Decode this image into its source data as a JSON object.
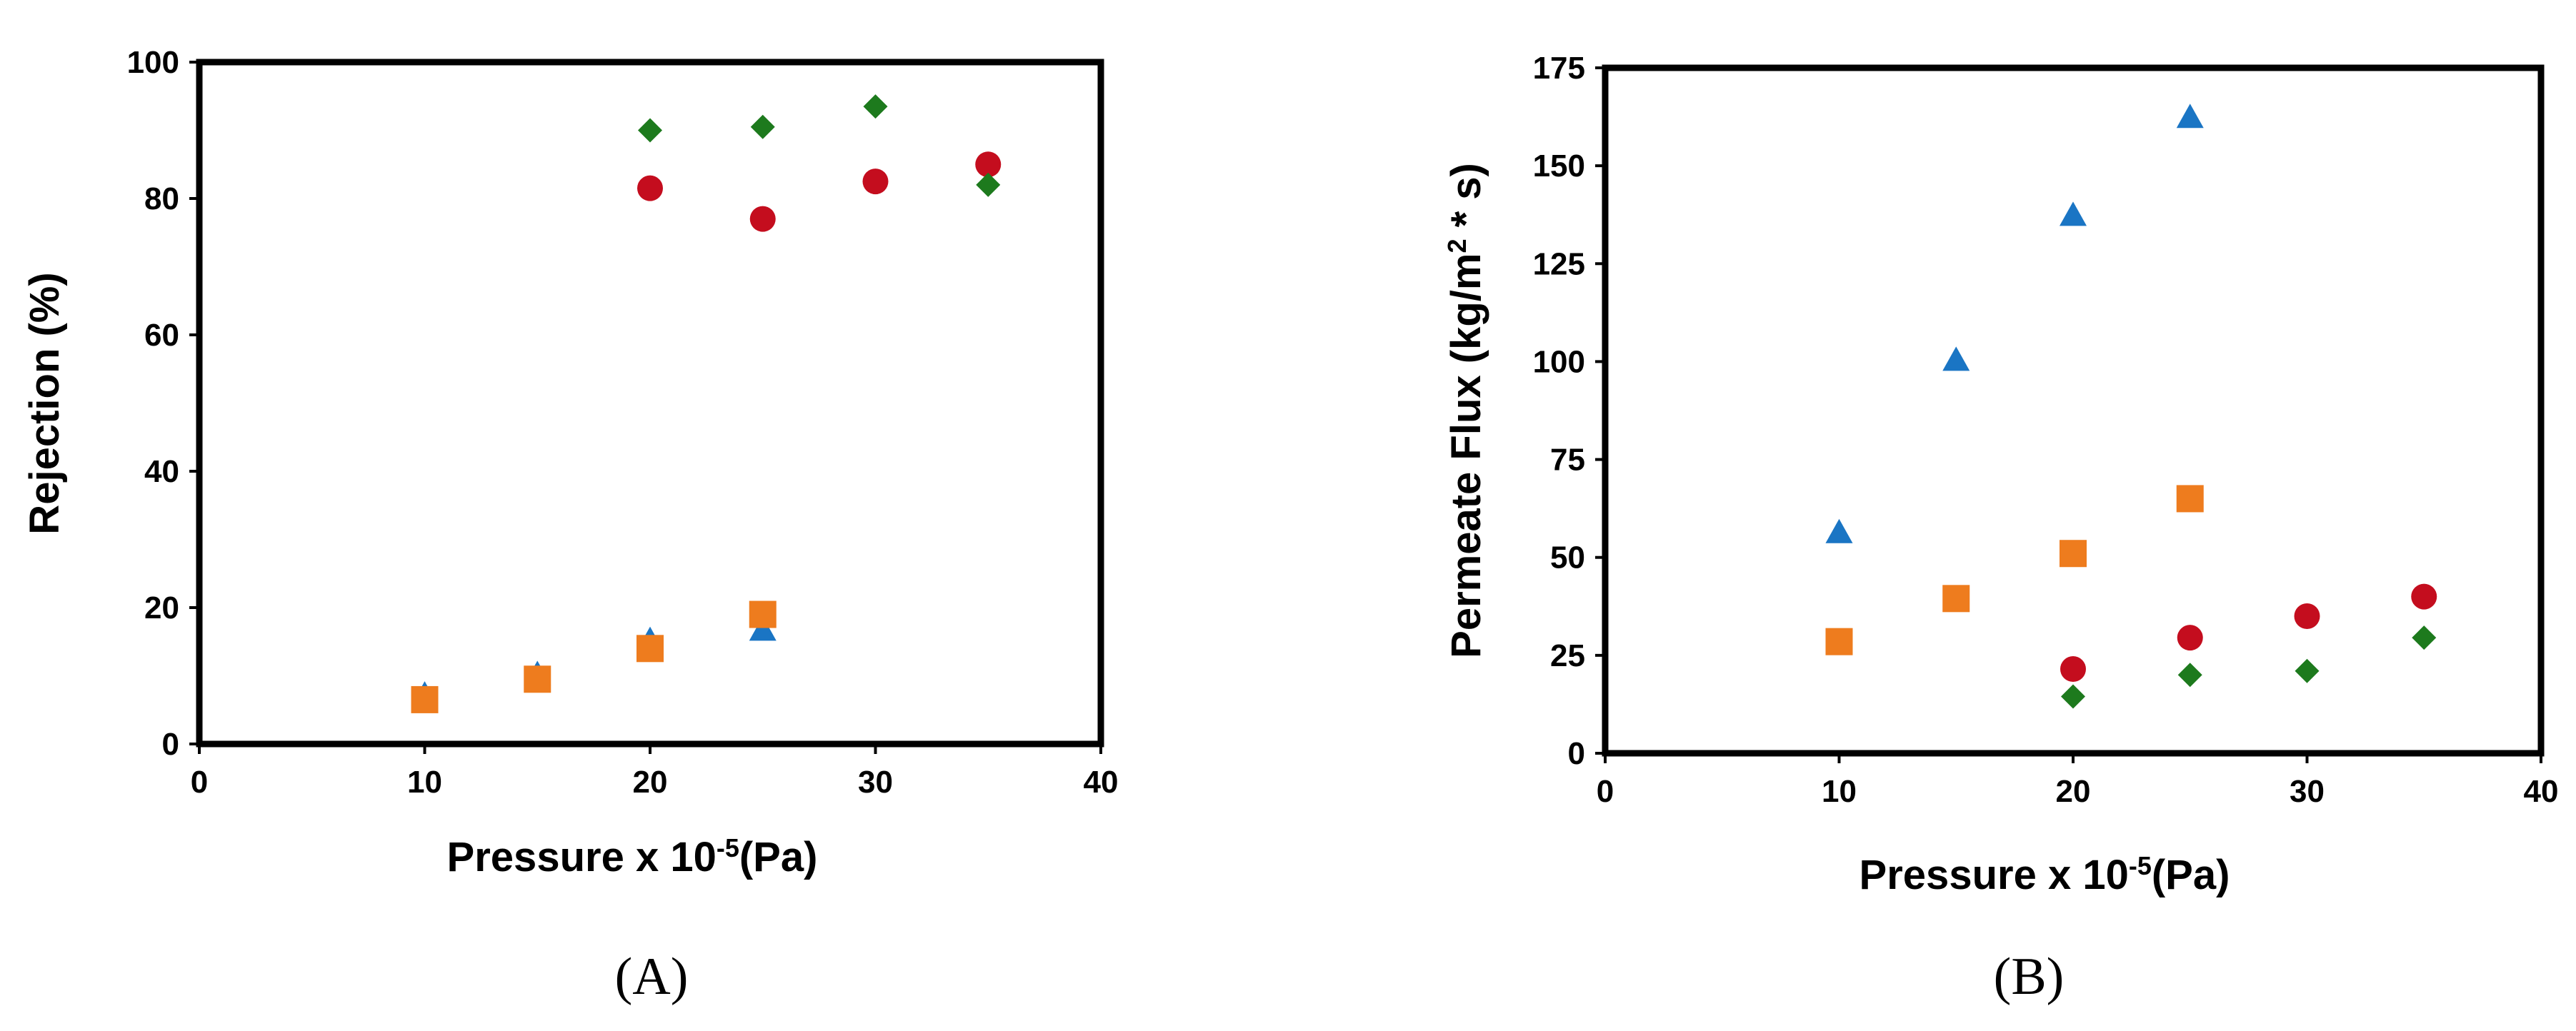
{
  "colors": {
    "triangle": "#1a75c4",
    "square": "#ee7c1e",
    "circle": "#c40d1e",
    "diamond": "#1d7a1d",
    "axis": "#000000"
  },
  "chart_data": [
    {
      "type": "scatter",
      "panel_label": "(A)",
      "xlabel_main": "Pressure x 10",
      "xlabel_sup": "-5",
      "xlabel_tail": "(Pa)",
      "ylabel": "Rejection (%)",
      "xlim": [
        0,
        40
      ],
      "ylim": [
        0,
        100
      ],
      "xticks": [
        0,
        10,
        20,
        30,
        40
      ],
      "yticks": [
        0,
        20,
        40,
        60,
        80,
        100
      ],
      "grid": false,
      "series": [
        {
          "marker": "triangle",
          "color": "#1a75c4",
          "x": [
            10,
            15,
            20,
            25
          ],
          "y": [
            7,
            10,
            15,
            16.5
          ]
        },
        {
          "marker": "square",
          "color": "#ee7c1e",
          "x": [
            10,
            15,
            20,
            25
          ],
          "y": [
            6.5,
            9.5,
            14,
            19
          ]
        },
        {
          "marker": "circle",
          "color": "#c40d1e",
          "x": [
            20,
            25,
            30,
            35
          ],
          "y": [
            81.5,
            77,
            82.5,
            85
          ]
        },
        {
          "marker": "diamond",
          "color": "#1d7a1d",
          "x": [
            20,
            25,
            30,
            35
          ],
          "y": [
            90,
            90.5,
            93.5,
            82
          ]
        }
      ]
    },
    {
      "type": "scatter",
      "panel_label": "(B)",
      "xlabel_main": "Pressure x 10",
      "xlabel_sup": "-5",
      "xlabel_tail": "(Pa)",
      "ylabel_main": "Permeate Flux (kg/m",
      "ylabel_sup": "2",
      "ylabel_tail": " * s)",
      "xlim": [
        0,
        40
      ],
      "ylim": [
        0,
        175
      ],
      "xticks": [
        0,
        10,
        20,
        30,
        40
      ],
      "yticks": [
        0,
        25,
        50,
        75,
        100,
        125,
        150,
        175
      ],
      "grid": false,
      "series": [
        {
          "marker": "triangle",
          "color": "#1a75c4",
          "x": [
            10,
            15,
            20,
            25
          ],
          "y": [
            56,
            100,
            137,
            162
          ]
        },
        {
          "marker": "square",
          "color": "#ee7c1e",
          "x": [
            10,
            15,
            20,
            25
          ],
          "y": [
            28.5,
            39.5,
            51,
            65
          ]
        },
        {
          "marker": "circle",
          "color": "#c40d1e",
          "x": [
            20,
            25,
            30,
            35
          ],
          "y": [
            21.5,
            29.5,
            35,
            40
          ]
        },
        {
          "marker": "diamond",
          "color": "#1d7a1d",
          "x": [
            20,
            25,
            30,
            35
          ],
          "y": [
            14.5,
            20,
            21,
            29.5
          ]
        }
      ]
    }
  ]
}
